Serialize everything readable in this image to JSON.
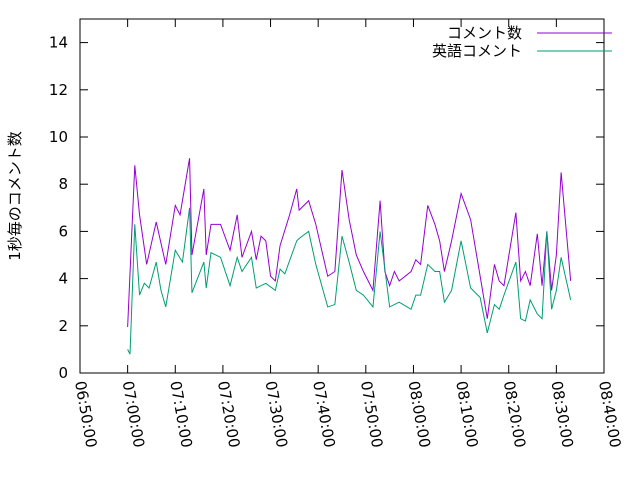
{
  "chart_data": {
    "type": "line",
    "ylabel": "1秒毎のコメント数",
    "xlim": [
      "06:50:00",
      "08:40:00"
    ],
    "xticks": [
      "06:50:00",
      "07:00:00",
      "07:10:00",
      "07:20:00",
      "07:30:00",
      "07:40:00",
      "07:50:00",
      "08:00:00",
      "08:10:00",
      "08:20:00",
      "08:30:00",
      "08:40:00"
    ],
    "ylim": [
      0,
      15
    ],
    "yticks": [
      0,
      2,
      4,
      6,
      8,
      10,
      12,
      14
    ],
    "grid": false,
    "legend": "top-right",
    "series": [
      {
        "name": "コメント数",
        "color": "#9400d3",
        "x": [
          "07:00:00",
          "07:01:30",
          "07:02:30",
          "07:04:00",
          "07:06:00",
          "07:08:00",
          "07:10:00",
          "07:11:00",
          "07:13:00",
          "07:13:30",
          "07:16:00",
          "07:16:30",
          "07:17:30",
          "07:19:30",
          "07:21:30",
          "07:23:00",
          "07:24:00",
          "07:26:00",
          "07:27:00",
          "07:28:00",
          "07:29:00",
          "07:30:00",
          "07:31:00",
          "07:32:00",
          "07:34:00",
          "07:35:30",
          "07:36:00",
          "07:38:00",
          "07:39:30",
          "07:42:00",
          "07:43:30",
          "07:45:00",
          "07:46:30",
          "07:48:00",
          "07:49:30",
          "07:51:30",
          "07:53:00",
          "07:54:00",
          "07:55:00",
          "07:56:00",
          "07:57:00",
          "07:59:30",
          "08:00:30",
          "08:01:30",
          "08:03:00",
          "08:04:30",
          "08:05:30",
          "08:06:30",
          "08:08:00",
          "08:10:00",
          "08:12:00",
          "08:14:00",
          "08:15:30",
          "08:17:00",
          "08:18:00",
          "08:19:00",
          "08:21:30",
          "08:22:30",
          "08:23:30",
          "08:24:30",
          "08:26:00",
          "08:27:00",
          "08:28:00",
          "08:29:00",
          "08:30:00",
          "08:31:00",
          "08:33:00"
        ],
        "values": [
          1.95,
          8.8,
          6.7,
          4.6,
          6.4,
          4.6,
          7.1,
          6.7,
          9.1,
          5.0,
          7.8,
          5.0,
          6.3,
          6.3,
          5.2,
          6.7,
          4.9,
          6.0,
          4.8,
          5.8,
          5.6,
          4.1,
          3.9,
          5.4,
          6.7,
          7.8,
          6.9,
          7.3,
          6.3,
          4.1,
          4.3,
          8.6,
          6.5,
          5.0,
          4.3,
          3.5,
          7.3,
          4.3,
          3.7,
          4.3,
          3.9,
          4.3,
          4.8,
          4.6,
          7.1,
          6.3,
          5.6,
          4.3,
          5.6,
          7.6,
          6.5,
          4.1,
          2.3,
          4.6,
          3.9,
          3.7,
          6.8,
          3.9,
          4.3,
          3.7,
          5.9,
          3.7,
          6.0,
          3.5,
          5.0,
          8.5,
          3.9
        ]
      },
      {
        "name": "英語コメント",
        "color": "#009e73",
        "x": [
          "07:00:00",
          "07:00:30",
          "07:01:30",
          "07:02:30",
          "07:03:30",
          "07:04:30",
          "07:06:00",
          "07:07:00",
          "07:08:00",
          "07:10:00",
          "07:11:30",
          "07:13:00",
          "07:13:30",
          "07:16:00",
          "07:16:30",
          "07:17:30",
          "07:19:30",
          "07:21:30",
          "07:23:00",
          "07:24:00",
          "07:26:00",
          "07:27:00",
          "07:29:00",
          "07:31:00",
          "07:32:00",
          "07:33:00",
          "07:35:30",
          "07:36:00",
          "07:38:00",
          "07:39:30",
          "07:42:00",
          "07:43:30",
          "07:45:00",
          "07:46:30",
          "07:48:00",
          "07:49:30",
          "07:51:30",
          "07:53:00",
          "07:55:00",
          "07:57:00",
          "07:59:30",
          "08:00:30",
          "08:01:30",
          "08:03:00",
          "08:04:30",
          "08:05:30",
          "08:06:30",
          "08:08:00",
          "08:10:00",
          "08:12:00",
          "08:14:00",
          "08:15:30",
          "08:17:00",
          "08:18:00",
          "08:19:00",
          "08:21:30",
          "08:22:30",
          "08:23:30",
          "08:24:30",
          "08:26:00",
          "08:27:00",
          "08:28:00",
          "08:29:00",
          "08:30:00",
          "08:31:00",
          "08:33:00"
        ],
        "values": [
          1.0,
          0.8,
          6.3,
          3.3,
          3.8,
          3.6,
          4.7,
          3.5,
          2.8,
          5.2,
          4.7,
          7.0,
          3.4,
          4.7,
          3.6,
          5.1,
          4.9,
          3.7,
          4.9,
          4.3,
          4.9,
          3.6,
          3.8,
          3.5,
          4.4,
          4.2,
          5.6,
          5.7,
          6.0,
          4.6,
          2.8,
          2.9,
          5.8,
          4.7,
          3.5,
          3.3,
          2.8,
          6.0,
          2.8,
          3.0,
          2.7,
          3.3,
          3.3,
          4.6,
          4.3,
          4.3,
          3.0,
          3.5,
          5.6,
          3.6,
          3.2,
          1.7,
          2.9,
          2.7,
          3.3,
          4.7,
          2.3,
          2.2,
          3.1,
          2.5,
          2.3,
          6.0,
          2.7,
          3.5,
          4.9,
          3.1
        ]
      }
    ]
  }
}
